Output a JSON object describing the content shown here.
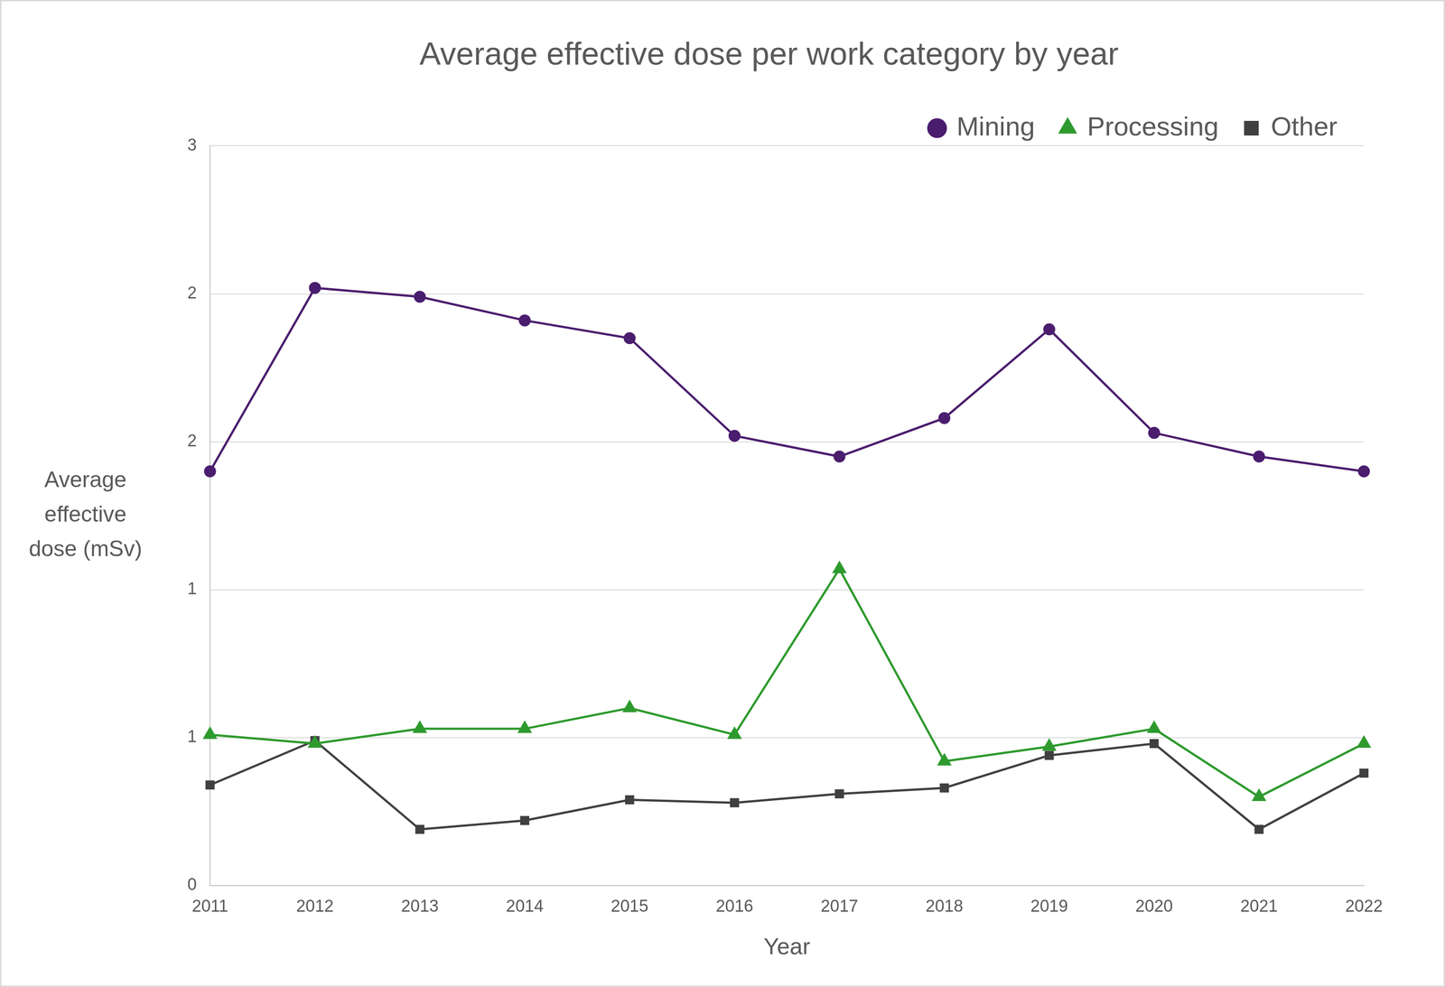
{
  "chart_data": {
    "type": "line",
    "title": "Average effective dose per work category by year",
    "x_label": "Year",
    "y_label": "Average effective dose (mSv)",
    "categories": [
      "2011",
      "2012",
      "2013",
      "2014",
      "2015",
      "2016",
      "2017",
      "2018",
      "2019",
      "2020",
      "2021",
      "2022"
    ],
    "series": [
      {
        "name": "Mining",
        "color": "#4b1d6e",
        "marker": "circle",
        "values": [
          1.4,
          2.02,
          1.99,
          1.91,
          1.85,
          1.52,
          1.45,
          1.58,
          1.88,
          1.53,
          1.45,
          1.4
        ]
      },
      {
        "name": "Processing",
        "color": "#2e9a2e",
        "marker": "triangle",
        "values": [
          0.51,
          0.48,
          0.53,
          0.53,
          0.6,
          0.51,
          1.07,
          0.42,
          0.47,
          0.53,
          0.3,
          0.48
        ]
      },
      {
        "name": "Other",
        "color": "#404040",
        "marker": "square",
        "values": [
          0.34,
          0.49,
          0.19,
          0.22,
          0.29,
          0.28,
          0.31,
          0.33,
          0.44,
          0.48,
          0.19,
          0.38
        ]
      }
    ],
    "ylim": [
      0,
      2.5
    ],
    "yticks": [
      0,
      {
        "value": 0.5,
        "label": "1"
      },
      1,
      {
        "value": 1.5,
        "label": "2"
      },
      2,
      {
        "value": 2.5,
        "label": "3"
      }
    ],
    "grid": true,
    "legend": "top-right"
  }
}
